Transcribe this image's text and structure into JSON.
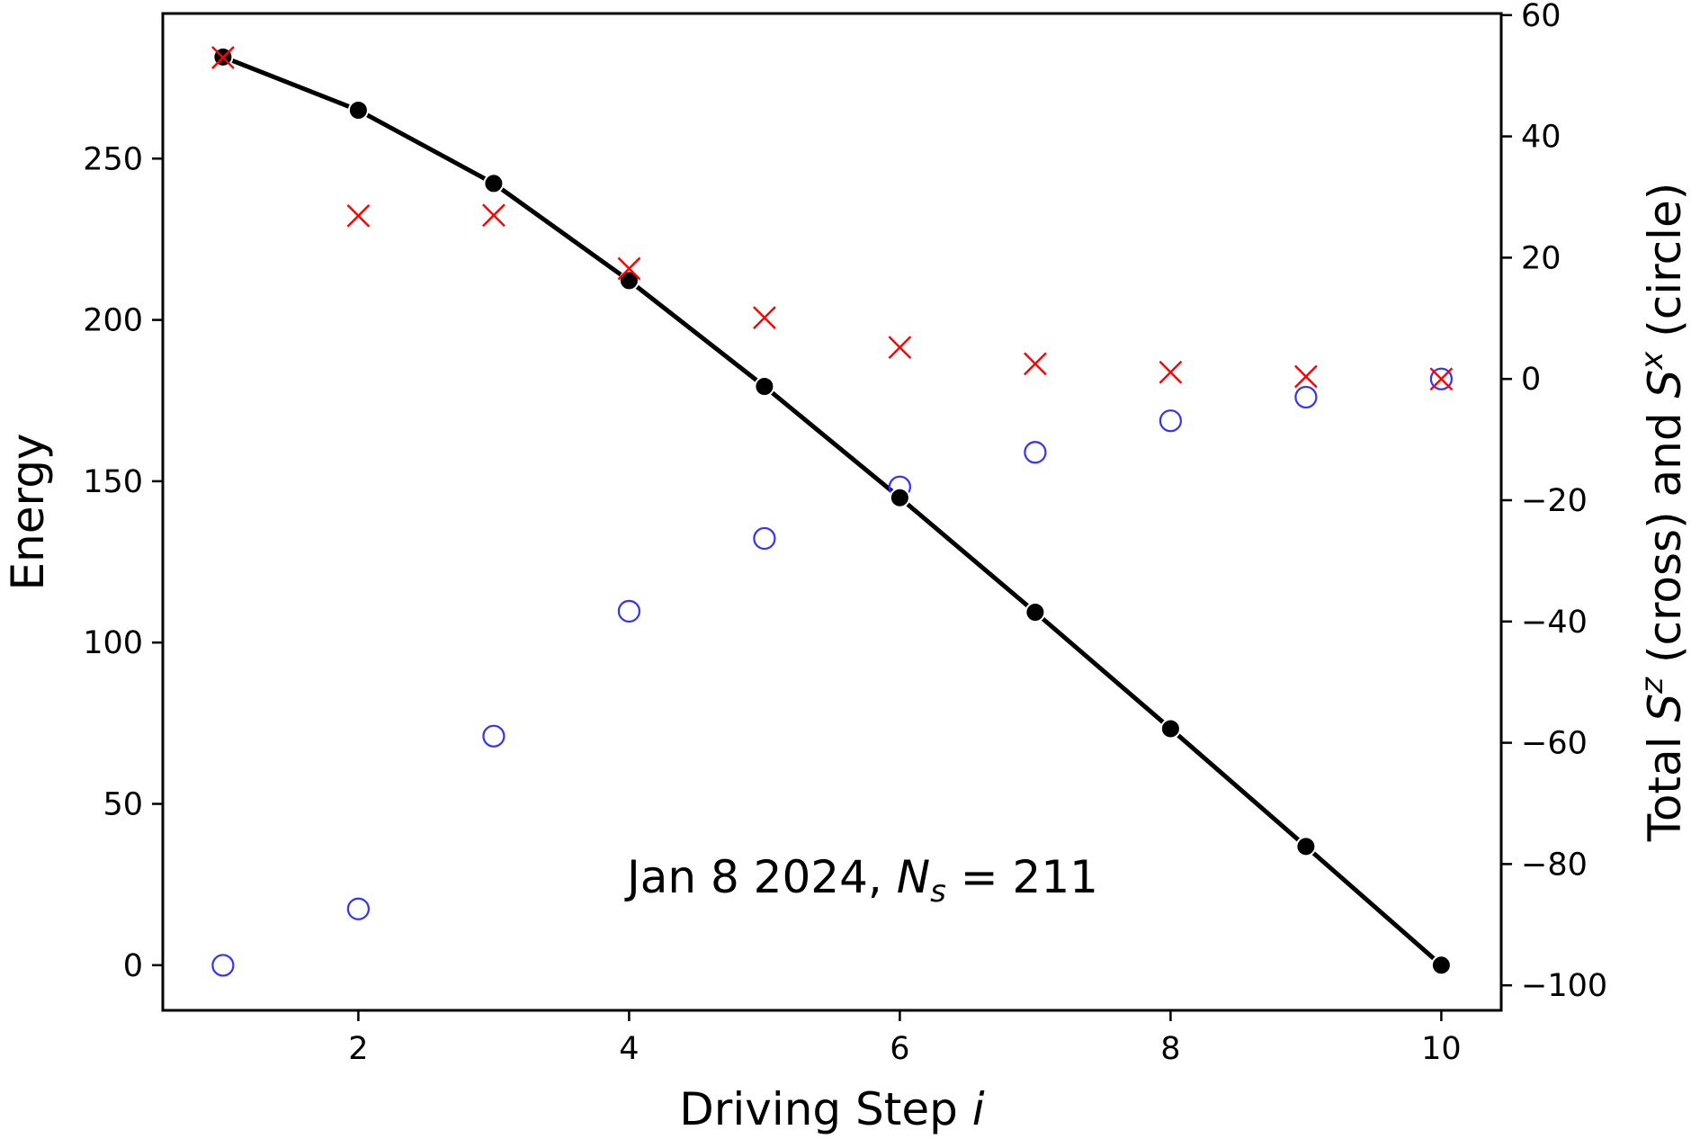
{
  "chart_data": {
    "type": "line",
    "title": "",
    "annotation": "Jan 8 2024, N_s = 211",
    "annotation_parts": {
      "prefix": "Jan 8 2024, ",
      "symbol": "N",
      "subscript": "s",
      "suffix": " = 211"
    },
    "xlabel": "Driving Step i",
    "xlabel_parts": {
      "text": "Driving Step ",
      "italic": "i"
    },
    "ylabel": "Energy",
    "y2label": "Total S^z (cross) and S^x (circle)",
    "y2label_parts": {
      "a": "Total ",
      "s1": "S",
      "sup1": "z",
      "b": " (cross) and ",
      "s2": "S",
      "sup2": "x",
      "c": " (circle)"
    },
    "x": [
      1,
      2,
      3,
      4,
      5,
      6,
      7,
      8,
      9,
      10
    ],
    "xlim": [
      0.55,
      10.45
    ],
    "ylim": [
      -15,
      295
    ],
    "y2lim": [
      -103,
      63
    ],
    "xticks": [
      2,
      4,
      6,
      8,
      10
    ],
    "yticks": [
      0,
      50,
      100,
      150,
      200,
      250
    ],
    "y2ticks": [
      -100,
      -80,
      -60,
      -40,
      -20,
      0,
      20,
      40,
      60
    ],
    "y2tick_labels": [
      "−100",
      "−80",
      "−60",
      "−40",
      "−20",
      "0",
      "20",
      "40",
      "60"
    ],
    "grid": false,
    "legend": "none",
    "series": [
      {
        "name": "Energy",
        "axis": "left",
        "style": "line+filled-circle",
        "color": "#000000",
        "values": [
          281.5,
          265,
          242.3,
          212.2,
          179.4,
          144.9,
          109.4,
          73.3,
          36.8,
          0
        ]
      },
      {
        "name": "Total S^z",
        "axis": "right",
        "style": "cross",
        "color": "#ff0000",
        "values": [
          53,
          26.9,
          27,
          18.2,
          10.1,
          5.2,
          2.5,
          1.1,
          0.4,
          0
        ]
      },
      {
        "name": "Total S^x",
        "axis": "right",
        "style": "open-circle",
        "color": "#3333ff",
        "values": [
          -96.7,
          -87.4,
          -58.9,
          -38.3,
          -26.3,
          -17.8,
          -12.1,
          -6.9,
          -3.0,
          0
        ]
      }
    ]
  }
}
